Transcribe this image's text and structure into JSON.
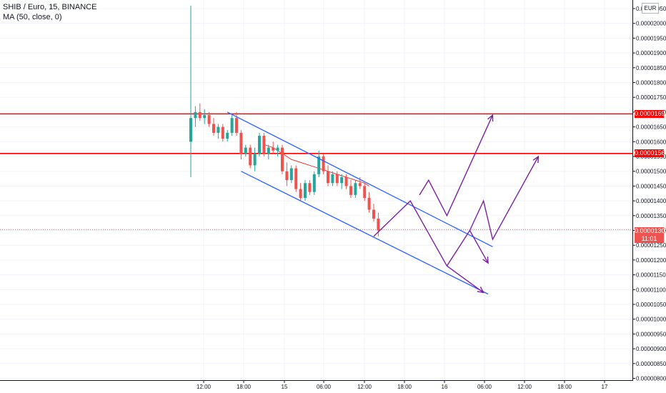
{
  "legend": {
    "symbol_line": "SHIB / Euro, 15, BINANCE",
    "indicator_line": "MA (50, close, 0)"
  },
  "currency_button": "EUR",
  "colors": {
    "up": "#26a69a",
    "down": "#ef5350",
    "ma": "#e53935",
    "level": "#ff0000",
    "channel": "#2962ff",
    "projection": "#7b1fa2",
    "grid": "#f0f3fa",
    "axis_text": "#787b86"
  },
  "chart_data": {
    "type": "line",
    "title": "SHIB / Euro, 15, BINANCE",
    "y_ticks": [
      "0.00002050",
      "0.00002000",
      "0.00001950",
      "0.00001900",
      "0.00001850",
      "0.00001800",
      "0.00001750",
      "0.00001700",
      "0.00001650",
      "0.00001600",
      "0.00001550",
      "0.00001500",
      "0.00001450",
      "0.00001400",
      "0.00001350",
      "0.00001300",
      "0.00001250",
      "0.00001200",
      "0.00001150",
      "0.00001100",
      "0.00001050",
      "0.00001000",
      "0.00000950",
      "0.00000900",
      "0.00000850",
      "0.00000800"
    ],
    "x_ticks": [
      "12:00",
      "18:00",
      "15",
      "06:00",
      "12:00",
      "18:00",
      "16",
      "06:00",
      "12:00",
      "18:00",
      "17"
    ],
    "ylim": [
      7.9e-06,
      2.06e-05
    ],
    "grid": true,
    "horizontal_levels": [
      {
        "value": 1.694e-05,
        "label": "0.00001694"
      },
      {
        "value": 1.56e-05,
        "label": "0.00001560"
      }
    ],
    "current_price": {
      "value": 1.303e-05,
      "label": "0.00001303",
      "countdown": "11:01"
    },
    "series": [
      {
        "kind": "candles",
        "values": [
          {
            "x": 0,
            "o": 1.6e-05,
            "h": 2.06e-05,
            "l": 1.48e-05,
            "c": 1.68e-05
          },
          {
            "x": 1,
            "o": 1.68e-05,
            "h": 1.72e-05,
            "l": 1.65e-05,
            "c": 1.7e-05
          },
          {
            "x": 2,
            "o": 1.7e-05,
            "h": 1.73e-05,
            "l": 1.67e-05,
            "c": 1.68e-05
          },
          {
            "x": 3,
            "o": 1.68e-05,
            "h": 1.71e-05,
            "l": 1.66e-05,
            "c": 1.69e-05
          },
          {
            "x": 4,
            "o": 1.69e-05,
            "h": 1.7e-05,
            "l": 1.65e-05,
            "c": 1.66e-05
          },
          {
            "x": 5,
            "o": 1.66e-05,
            "h": 1.68e-05,
            "l": 1.62e-05,
            "c": 1.63e-05
          },
          {
            "x": 6,
            "o": 1.63e-05,
            "h": 1.66e-05,
            "l": 1.61e-05,
            "c": 1.65e-05
          },
          {
            "x": 7,
            "o": 1.65e-05,
            "h": 1.66e-05,
            "l": 1.6e-05,
            "c": 1.61e-05
          },
          {
            "x": 8,
            "o": 1.61e-05,
            "h": 1.64e-05,
            "l": 1.6e-05,
            "c": 1.63e-05
          },
          {
            "x": 9,
            "o": 1.63e-05,
            "h": 1.69e-05,
            "l": 1.62e-05,
            "c": 1.68e-05
          },
          {
            "x": 10,
            "o": 1.68e-05,
            "h": 1.7e-05,
            "l": 1.62e-05,
            "c": 1.63e-05
          },
          {
            "x": 11,
            "o": 1.63e-05,
            "h": 1.64e-05,
            "l": 1.54e-05,
            "c": 1.56e-05
          },
          {
            "x": 12,
            "o": 1.56e-05,
            "h": 1.59e-05,
            "l": 1.55e-05,
            "c": 1.58e-05
          },
          {
            "x": 13,
            "o": 1.58e-05,
            "h": 1.59e-05,
            "l": 1.51e-05,
            "c": 1.52e-05
          },
          {
            "x": 14,
            "o": 1.52e-05,
            "h": 1.58e-05,
            "l": 1.5e-05,
            "c": 1.56e-05
          },
          {
            "x": 15,
            "o": 1.56e-05,
            "h": 1.63e-05,
            "l": 1.55e-05,
            "c": 1.62e-05
          },
          {
            "x": 16,
            "o": 1.62e-05,
            "h": 1.63e-05,
            "l": 1.55e-05,
            "c": 1.56e-05
          },
          {
            "x": 17,
            "o": 1.56e-05,
            "h": 1.59e-05,
            "l": 1.54e-05,
            "c": 1.58e-05
          },
          {
            "x": 18,
            "o": 1.58e-05,
            "h": 1.6e-05,
            "l": 1.56e-05,
            "c": 1.57e-05
          },
          {
            "x": 19,
            "o": 1.57e-05,
            "h": 1.59e-05,
            "l": 1.55e-05,
            "c": 1.58e-05
          },
          {
            "x": 20,
            "o": 1.58e-05,
            "h": 1.59e-05,
            "l": 1.49e-05,
            "c": 1.5e-05
          },
          {
            "x": 21,
            "o": 1.5e-05,
            "h": 1.53e-05,
            "l": 1.45e-05,
            "c": 1.47e-05
          },
          {
            "x": 22,
            "o": 1.47e-05,
            "h": 1.52e-05,
            "l": 1.46e-05,
            "c": 1.51e-05
          },
          {
            "x": 23,
            "o": 1.51e-05,
            "h": 1.52e-05,
            "l": 1.43e-05,
            "c": 1.44e-05
          },
          {
            "x": 24,
            "o": 1.44e-05,
            "h": 1.46e-05,
            "l": 1.4e-05,
            "c": 1.41e-05
          },
          {
            "x": 25,
            "o": 1.41e-05,
            "h": 1.47e-05,
            "l": 1.4e-05,
            "c": 1.46e-05
          },
          {
            "x": 26,
            "o": 1.46e-05,
            "h": 1.47e-05,
            "l": 1.42e-05,
            "c": 1.43e-05
          },
          {
            "x": 27,
            "o": 1.43e-05,
            "h": 1.5e-05,
            "l": 1.42e-05,
            "c": 1.49e-05
          },
          {
            "x": 28,
            "o": 1.49e-05,
            "h": 1.57e-05,
            "l": 1.48e-05,
            "c": 1.55e-05
          },
          {
            "x": 29,
            "o": 1.55e-05,
            "h": 1.56e-05,
            "l": 1.49e-05,
            "c": 1.5e-05
          },
          {
            "x": 30,
            "o": 1.5e-05,
            "h": 1.52e-05,
            "l": 1.45e-05,
            "c": 1.46e-05
          },
          {
            "x": 31,
            "o": 1.46e-05,
            "h": 1.5e-05,
            "l": 1.45e-05,
            "c": 1.49e-05
          },
          {
            "x": 32,
            "o": 1.49e-05,
            "h": 1.5e-05,
            "l": 1.45e-05,
            "c": 1.46e-05
          },
          {
            "x": 33,
            "o": 1.46e-05,
            "h": 1.49e-05,
            "l": 1.44e-05,
            "c": 1.48e-05
          },
          {
            "x": 34,
            "o": 1.48e-05,
            "h": 1.49e-05,
            "l": 1.44e-05,
            "c": 1.45e-05
          },
          {
            "x": 35,
            "o": 1.45e-05,
            "h": 1.47e-05,
            "l": 1.41e-05,
            "c": 1.42e-05
          },
          {
            "x": 36,
            "o": 1.42e-05,
            "h": 1.47e-05,
            "l": 1.41e-05,
            "c": 1.46e-05
          },
          {
            "x": 37,
            "o": 1.46e-05,
            "h": 1.48e-05,
            "l": 1.44e-05,
            "c": 1.45e-05
          },
          {
            "x": 38,
            "o": 1.45e-05,
            "h": 1.46e-05,
            "l": 1.4e-05,
            "c": 1.41e-05
          },
          {
            "x": 39,
            "o": 1.41e-05,
            "h": 1.43e-05,
            "l": 1.36e-05,
            "c": 1.37e-05
          },
          {
            "x": 40,
            "o": 1.37e-05,
            "h": 1.39e-05,
            "l": 1.33e-05,
            "c": 1.34e-05
          },
          {
            "x": 41,
            "o": 1.34e-05,
            "h": 1.36e-05,
            "l": 1.28e-05,
            "c": 1.3e-05
          }
        ]
      },
      {
        "kind": "ma",
        "name": "MA (50, close, 0)",
        "x": [
          16,
          18,
          20,
          22,
          24,
          26,
          28,
          30,
          32,
          34,
          36,
          38,
          39
        ],
        "y": [
          1.59e-05,
          1.58e-05,
          1.56e-05,
          1.54e-05,
          1.53e-05,
          1.52e-05,
          1.51e-05,
          1.5e-05,
          1.49e-05,
          1.48e-05,
          1.47e-05,
          1.46e-05,
          1.45e-05
        ]
      }
    ],
    "channel": {
      "upper": [
        [
          8,
          1.7e-05
        ],
        [
          66,
          1.245e-05
        ]
      ],
      "lower": [
        [
          11,
          1.5e-05
        ],
        [
          65,
          1.085e-05
        ]
      ]
    },
    "projections": [
      [
        [
          40,
          1.28e-05
        ],
        [
          48,
          1.4e-05
        ],
        [
          56,
          1.18e-05
        ],
        [
          64,
          1.09e-05
        ]
      ],
      [
        [
          50,
          1.42e-05
        ],
        [
          52,
          1.47e-05
        ],
        [
          56,
          1.35e-05
        ],
        [
          66,
          1.69e-05
        ]
      ],
      [
        [
          56,
          1.18e-05
        ],
        [
          61,
          1.3e-05
        ],
        [
          65,
          1.19e-05
        ]
      ],
      [
        [
          61,
          1.3e-05
        ],
        [
          64,
          1.4e-05
        ],
        [
          66,
          1.27e-05
        ],
        [
          76,
          1.55e-05
        ]
      ]
    ]
  }
}
